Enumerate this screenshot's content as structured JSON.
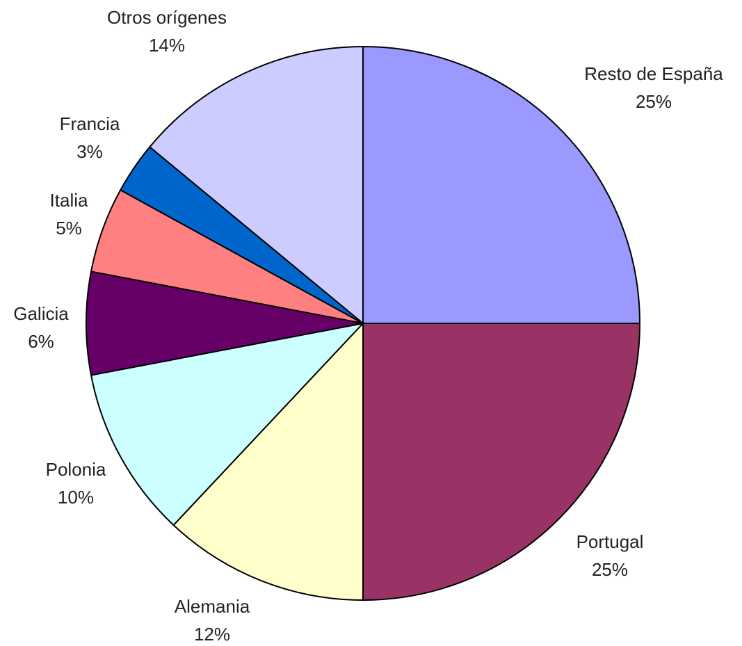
{
  "chart_data": {
    "type": "pie",
    "categories": [
      "Resto de España",
      "Portugal",
      "Alemania",
      "Polonia",
      "Galicia",
      "Italia",
      "Francia",
      "Otros orígenes"
    ],
    "values": [
      25,
      25,
      12,
      10,
      6,
      5,
      3,
      14
    ],
    "value_labels": [
      "25%",
      "25%",
      "12%",
      "10%",
      "6%",
      "5%",
      "3%",
      "14%"
    ],
    "colors": [
      "#9999ff",
      "#993366",
      "#ffffcc",
      "#ccffff",
      "#660066",
      "#ff8080",
      "#0066cc",
      "#ccccff"
    ]
  }
}
